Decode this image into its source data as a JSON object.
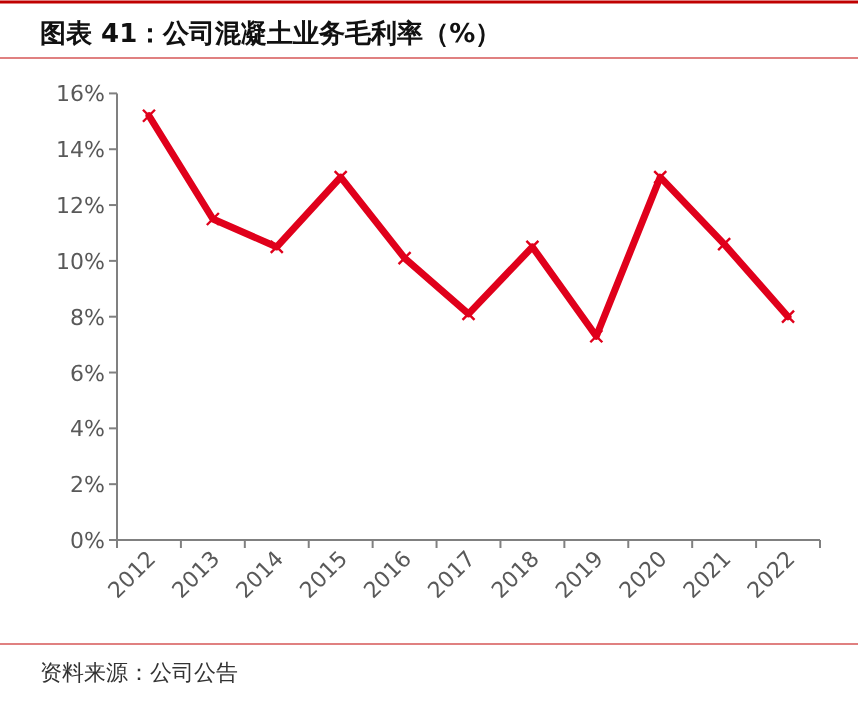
{
  "chart_data": {
    "type": "line",
    "title": "图表 41：公司混凝土业务毛利率（%）",
    "annotations": [
      "资料来源：公司公告"
    ],
    "categories": [
      "2012",
      "2013",
      "2014",
      "2015",
      "2016",
      "2017",
      "2018",
      "2019",
      "2020",
      "2021",
      "2022"
    ],
    "series": [
      {
        "color": "#e0001b",
        "values": [
          15.2,
          11.5,
          10.5,
          13.0,
          10.1,
          8.1,
          10.5,
          7.3,
          13.0,
          10.6,
          8.0
        ]
      }
    ],
    "ylim": [
      0,
      16
    ],
    "yticks": [
      {
        "value": 0,
        "label": "0%"
      },
      {
        "value": 2,
        "label": "2%"
      },
      {
        "value": 4,
        "label": "4%"
      },
      {
        "value": 6,
        "label": "6%"
      },
      {
        "value": 8,
        "label": "8%"
      },
      {
        "value": 10,
        "label": "10%"
      },
      {
        "value": 12,
        "label": "12%"
      },
      {
        "value": 14,
        "label": "14%"
      },
      {
        "value": 16,
        "label": "16%"
      }
    ],
    "marker": "cross",
    "line_style": "solid",
    "grid": false
  }
}
